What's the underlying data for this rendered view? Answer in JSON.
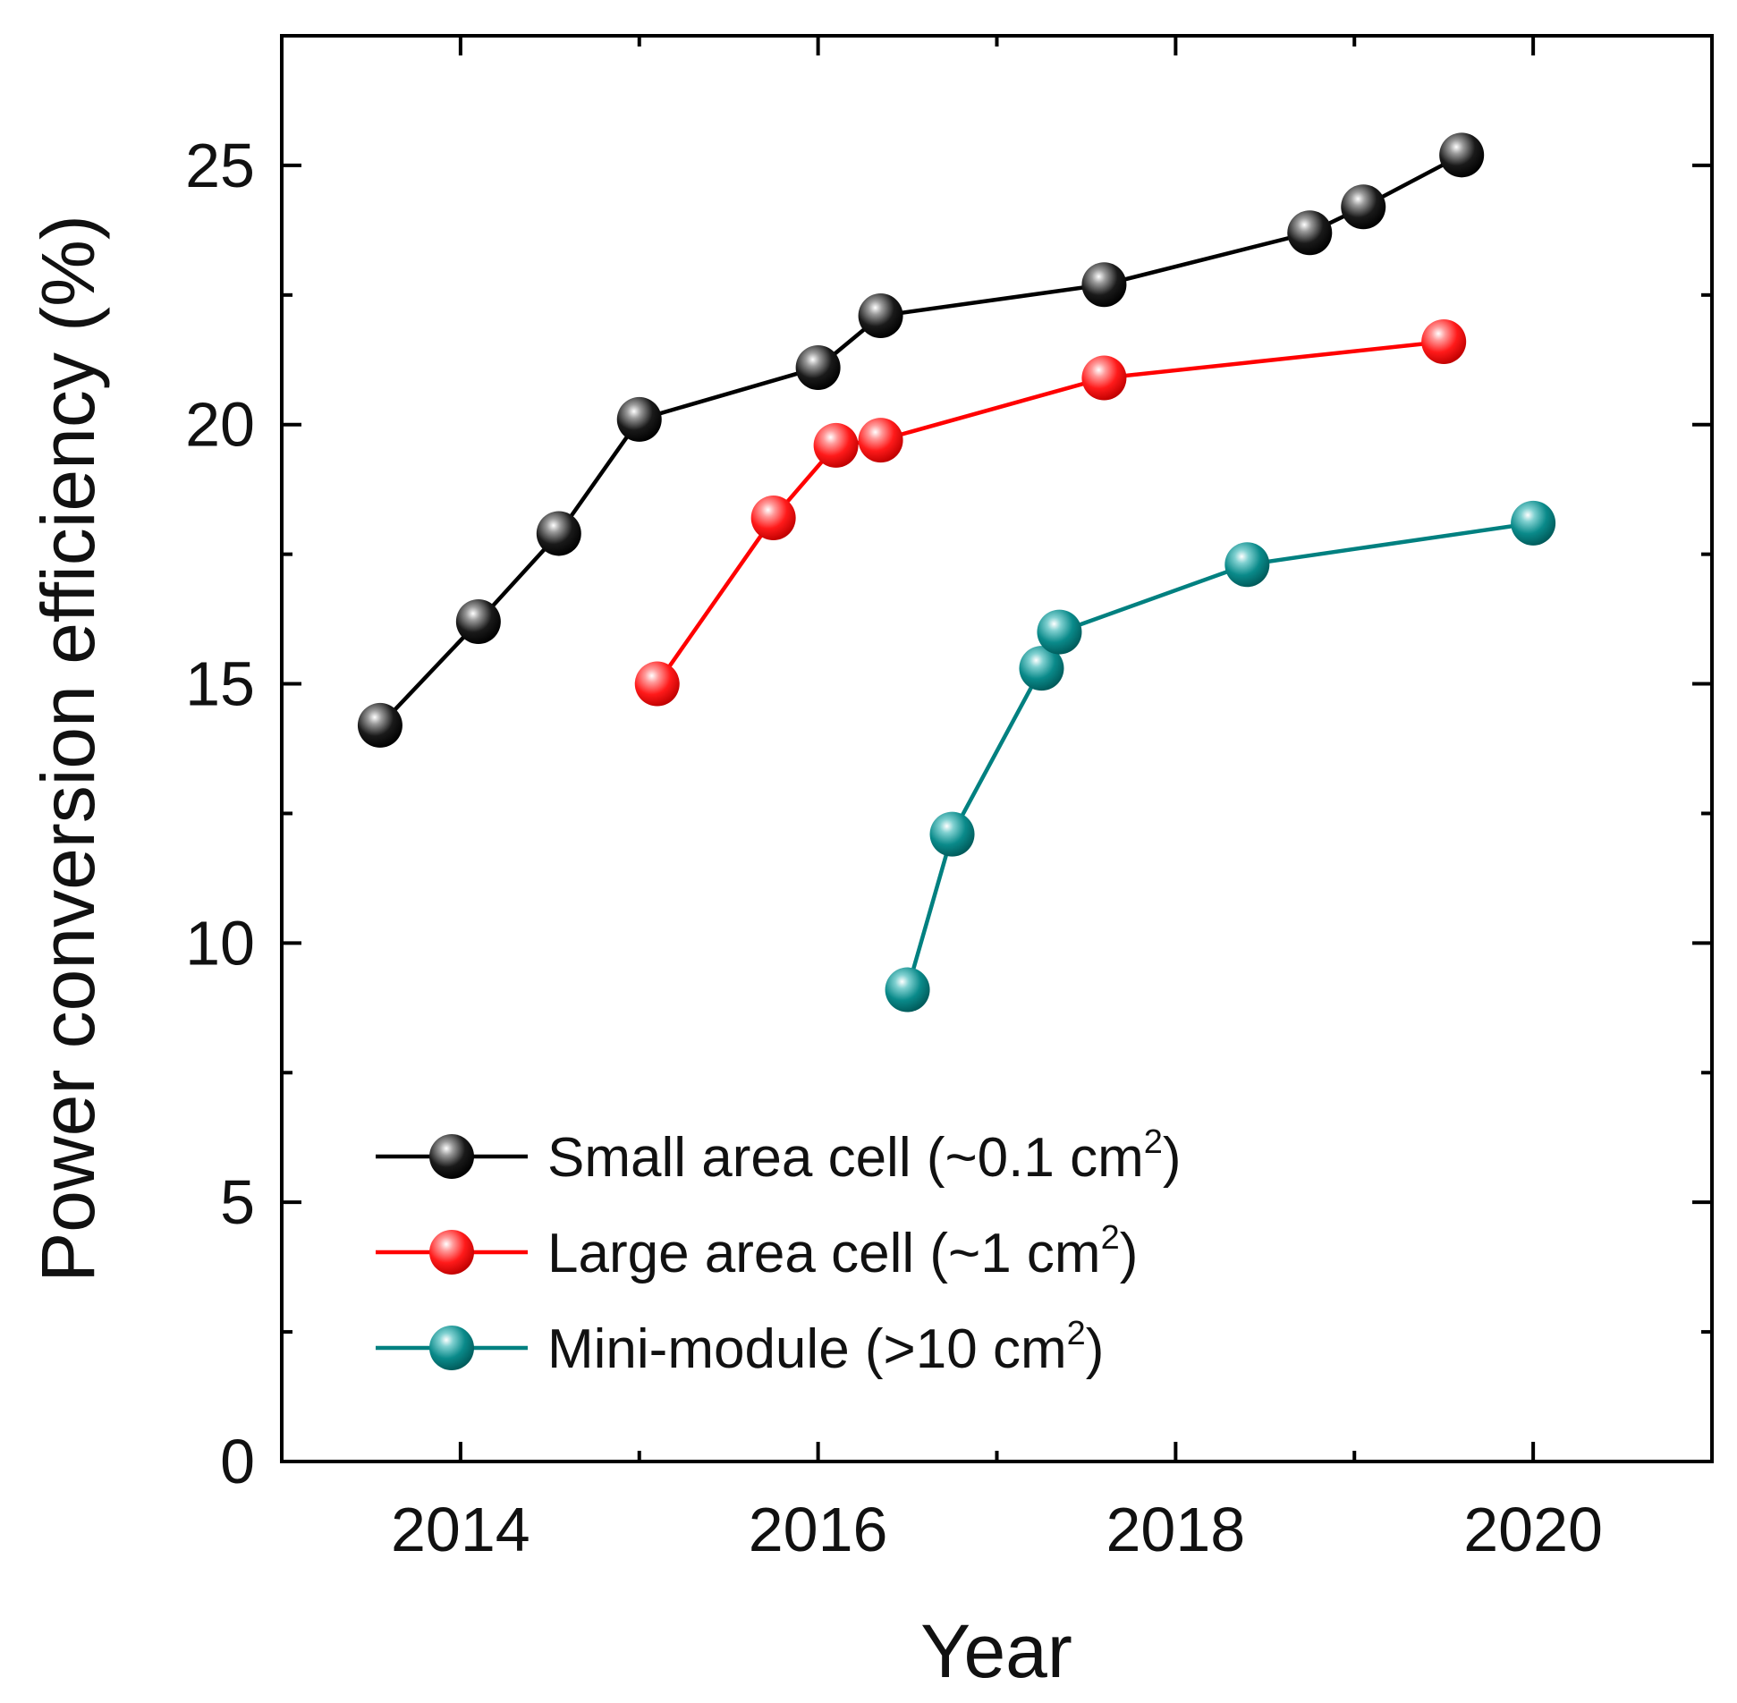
{
  "chart_data": {
    "type": "line",
    "title": "",
    "xlabel": "Year",
    "ylabel": "Power conversion efficiency (%)",
    "xlim": [
      2013,
      2021
    ],
    "ylim": [
      0,
      27.5
    ],
    "x_ticks": [
      "2014",
      "2016",
      "2018",
      "2020"
    ],
    "x_tick_values": [
      2014,
      2016,
      2018,
      2020
    ],
    "y_ticks": [
      "0",
      "5",
      "10",
      "15",
      "20",
      "25"
    ],
    "y_tick_values": [
      0,
      5,
      10,
      15,
      20,
      25
    ],
    "legend_position": "bottom-left",
    "series": [
      {
        "name": "Small area cell (~0.1 cm",
        "sup": "2",
        "close": ")",
        "color": "#000000",
        "marker_color": "#1a1a1a",
        "points": [
          {
            "x": 2013.55,
            "y": 14.2
          },
          {
            "x": 2014.1,
            "y": 16.2
          },
          {
            "x": 2014.55,
            "y": 17.9
          },
          {
            "x": 2015.0,
            "y": 20.1
          },
          {
            "x": 2016.0,
            "y": 21.1
          },
          {
            "x": 2016.35,
            "y": 22.1
          },
          {
            "x": 2017.6,
            "y": 22.7
          },
          {
            "x": 2018.75,
            "y": 23.7
          },
          {
            "x": 2019.05,
            "y": 24.2
          },
          {
            "x": 2019.6,
            "y": 25.2
          }
        ]
      },
      {
        "name": "Large area cell (~1 cm",
        "sup": "2",
        "close": ")",
        "color": "#ff0000",
        "marker_color": "#ff1a1a",
        "points": [
          {
            "x": 2015.1,
            "y": 15.0
          },
          {
            "x": 2015.75,
            "y": 18.2
          },
          {
            "x": 2016.1,
            "y": 19.6
          },
          {
            "x": 2016.35,
            "y": 19.7
          },
          {
            "x": 2017.6,
            "y": 20.9
          },
          {
            "x": 2019.5,
            "y": 21.6
          }
        ]
      },
      {
        "name": "Mini-module (>10 cm",
        "sup": "2",
        "close": ")",
        "color": "#008080",
        "marker_color": "#0a8a8a",
        "points": [
          {
            "x": 2016.5,
            "y": 9.1
          },
          {
            "x": 2016.75,
            "y": 12.1
          },
          {
            "x": 2017.25,
            "y": 15.3
          },
          {
            "x": 2017.35,
            "y": 16.0
          },
          {
            "x": 2018.4,
            "y": 17.3
          },
          {
            "x": 2020.0,
            "y": 18.1
          }
        ]
      }
    ]
  }
}
